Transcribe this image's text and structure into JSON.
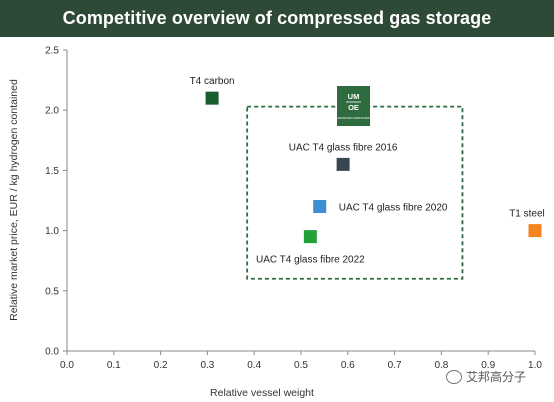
{
  "title": "Competitive overview of compressed gas storage",
  "watermark": "艾邦高分子",
  "logo": {
    "top": "UM",
    "bottom": "OE",
    "caption": "ADVANCED COMPOSITES"
  },
  "colors": {
    "title_bg": "#2e4a36",
    "t4_carbon": "#1b5e2e",
    "uac_2016": "#37474f",
    "uac_2020": "#3d8fd1",
    "uac_2022": "#22a03a",
    "t1_steel": "#f5841f",
    "box_border": "#2e6b3e"
  },
  "chart_data": {
    "type": "scatter",
    "title": "Competitive overview of compressed gas storage",
    "xlabel": "Relative vessel weight",
    "ylabel": "Relative market price, EUR / kg hydrogen contained",
    "xlim": [
      0.0,
      1.0
    ],
    "ylim": [
      0.0,
      2.5
    ],
    "xticks": [
      "0.0",
      "0.1",
      "0.2",
      "0.3",
      "0.4",
      "0.5",
      "0.6",
      "0.7",
      "0.8",
      "0.9",
      "1.0"
    ],
    "yticks": [
      "0.0",
      "0.5",
      "1.0",
      "1.5",
      "2.0",
      "2.5"
    ],
    "grid": false,
    "points": [
      {
        "label": "T4 carbon",
        "x": 0.31,
        "y": 2.1,
        "color": "#1b5e2e",
        "label_pos": "above"
      },
      {
        "label": "UAC T4 glass fibre 2016",
        "x": 0.59,
        "y": 1.55,
        "color": "#37474f",
        "label_pos": "above"
      },
      {
        "label": "UAC T4 glass fibre 2020",
        "x": 0.54,
        "y": 1.2,
        "color": "#3d8fd1",
        "label_pos": "right"
      },
      {
        "label": "UAC T4 glass fibre 2022",
        "x": 0.52,
        "y": 0.95,
        "color": "#22a03a",
        "label_pos": "below"
      },
      {
        "label": "T1 steel",
        "x": 1.0,
        "y": 1.0,
        "color": "#f5841f",
        "label_pos": "above"
      }
    ],
    "highlight_box": {
      "x": [
        0.385,
        0.845
      ],
      "y": [
        0.6,
        2.03
      ],
      "style": "dashed"
    }
  }
}
